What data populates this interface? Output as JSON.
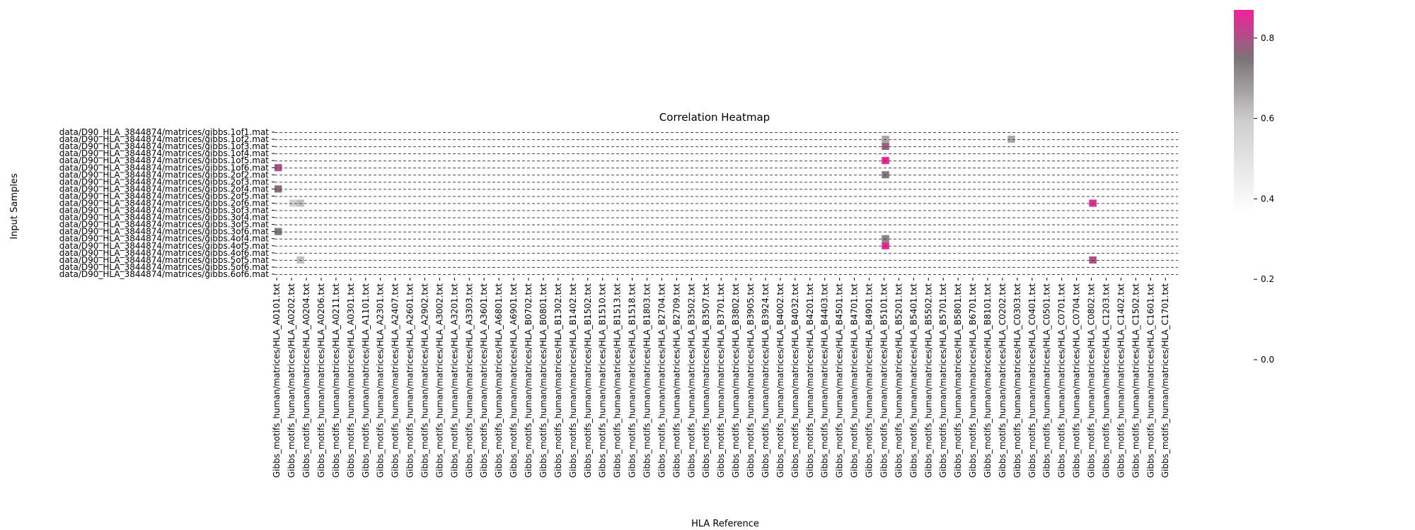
{
  "chart_data": {
    "type": "heatmap",
    "title": "Correlation Heatmap",
    "xlabel": "HLA Reference",
    "ylabel": "Input Samples",
    "rows": [
      "data/D90_HLA_3844874/matrices/gibbs.1of1.mat",
      "data/D90_HLA_3844874/matrices/gibbs.1of2.mat",
      "data/D90_HLA_3844874/matrices/gibbs.1of3.mat",
      "data/D90_HLA_3844874/matrices/gibbs.1of4.mat",
      "data/D90_HLA_3844874/matrices/gibbs.1of5.mat",
      "data/D90_HLA_3844874/matrices/gibbs.1of6.mat",
      "data/D90_HLA_3844874/matrices/gibbs.2of2.mat",
      "data/D90_HLA_3844874/matrices/gibbs.2of3.mat",
      "data/D90_HLA_3844874/matrices/gibbs.2of4.mat",
      "data/D90_HLA_3844874/matrices/gibbs.2of5.mat",
      "data/D90_HLA_3844874/matrices/gibbs.2of6.mat",
      "data/D90_HLA_3844874/matrices/gibbs.3of3.mat",
      "data/D90_HLA_3844874/matrices/gibbs.3of4.mat",
      "data/D90_HLA_3844874/matrices/gibbs.3of5.mat",
      "data/D90_HLA_3844874/matrices/gibbs.3of6.mat",
      "data/D90_HLA_3844874/matrices/gibbs.4of4.mat",
      "data/D90_HLA_3844874/matrices/gibbs.4of5.mat",
      "data/D90_HLA_3844874/matrices/gibbs.4of6.mat",
      "data/D90_HLA_3844874/matrices/gibbs.5of5.mat",
      "data/D90_HLA_3844874/matrices/gibbs.5of6.mat",
      "data/D90_HLA_3844874/matrices/gibbs.6of6.mat"
    ],
    "columns": [
      "Gibbs_motifs_human/matrices/HLA_A0101.txt",
      "Gibbs_motifs_human/matrices/HLA_A0202.txt",
      "Gibbs_motifs_human/matrices/HLA_A0204.txt",
      "Gibbs_motifs_human/matrices/HLA_A0206.txt",
      "Gibbs_motifs_human/matrices/HLA_A0211.txt",
      "Gibbs_motifs_human/matrices/HLA_A0301.txt",
      "Gibbs_motifs_human/matrices/HLA_A1101.txt",
      "Gibbs_motifs_human/matrices/HLA_A2301.txt",
      "Gibbs_motifs_human/matrices/HLA_A2407.txt",
      "Gibbs_motifs_human/matrices/HLA_A2601.txt",
      "Gibbs_motifs_human/matrices/HLA_A2902.txt",
      "Gibbs_motifs_human/matrices/HLA_A3002.txt",
      "Gibbs_motifs_human/matrices/HLA_A3201.txt",
      "Gibbs_motifs_human/matrices/HLA_A3303.txt",
      "Gibbs_motifs_human/matrices/HLA_A3601.txt",
      "Gibbs_motifs_human/matrices/HLA_A6801.txt",
      "Gibbs_motifs_human/matrices/HLA_A6901.txt",
      "Gibbs_motifs_human/matrices/HLA_B0702.txt",
      "Gibbs_motifs_human/matrices/HLA_B0801.txt",
      "Gibbs_motifs_human/matrices/HLA_B1302.txt",
      "Gibbs_motifs_human/matrices/HLA_B1402.txt",
      "Gibbs_motifs_human/matrices/HLA_B1502.txt",
      "Gibbs_motifs_human/matrices/HLA_B1510.txt",
      "Gibbs_motifs_human/matrices/HLA_B1513.txt",
      "Gibbs_motifs_human/matrices/HLA_B1518.txt",
      "Gibbs_motifs_human/matrices/HLA_B1803.txt",
      "Gibbs_motifs_human/matrices/HLA_B2704.txt",
      "Gibbs_motifs_human/matrices/HLA_B2709.txt",
      "Gibbs_motifs_human/matrices/HLA_B3502.txt",
      "Gibbs_motifs_human/matrices/HLA_B3507.txt",
      "Gibbs_motifs_human/matrices/HLA_B3701.txt",
      "Gibbs_motifs_human/matrices/HLA_B3802.txt",
      "Gibbs_motifs_human/matrices/HLA_B3905.txt",
      "Gibbs_motifs_human/matrices/HLA_B3924.txt",
      "Gibbs_motifs_human/matrices/HLA_B4002.txt",
      "Gibbs_motifs_human/matrices/HLA_B4032.txt",
      "Gibbs_motifs_human/matrices/HLA_B4201.txt",
      "Gibbs_motifs_human/matrices/HLA_B4403.txt",
      "Gibbs_motifs_human/matrices/HLA_B4501.txt",
      "Gibbs_motifs_human/matrices/HLA_B4701.txt",
      "Gibbs_motifs_human/matrices/HLA_B4901.txt",
      "Gibbs_motifs_human/matrices/HLA_B5101.txt",
      "Gibbs_motifs_human/matrices/HLA_B5201.txt",
      "Gibbs_motifs_human/matrices/HLA_B5401.txt",
      "Gibbs_motifs_human/matrices/HLA_B5502.txt",
      "Gibbs_motifs_human/matrices/HLA_B5701.txt",
      "Gibbs_motifs_human/matrices/HLA_B5801.txt",
      "Gibbs_motifs_human/matrices/HLA_B6701.txt",
      "Gibbs_motifs_human/matrices/HLA_B8101.txt",
      "Gibbs_motifs_human/matrices/HLA_C0202.txt",
      "Gibbs_motifs_human/matrices/HLA_C0303.txt",
      "Gibbs_motifs_human/matrices/HLA_C0401.txt",
      "Gibbs_motifs_human/matrices/HLA_C0501.txt",
      "Gibbs_motifs_human/matrices/HLA_C0701.txt",
      "Gibbs_motifs_human/matrices/HLA_C0704.txt",
      "Gibbs_motifs_human/matrices/HLA_C0802.txt",
      "Gibbs_motifs_human/matrices/HLA_C1203.txt",
      "Gibbs_motifs_human/matrices/HLA_C1402.txt",
      "Gibbs_motifs_human/matrices/HLA_C1502.txt",
      "Gibbs_motifs_human/matrices/HLA_C1601.txt",
      "Gibbs_motifs_human/matrices/HLA_C1701.txt"
    ],
    "notable_cells": [
      {
        "row": 4,
        "col": 82,
        "value": 0.87
      },
      {
        "row": 5,
        "col": 0,
        "value": 0.8
      },
      {
        "row": 2,
        "col": 82,
        "value": 0.78
      },
      {
        "row": 6,
        "col": 82,
        "value": 0.74
      },
      {
        "row": 8,
        "col": 0,
        "value": 0.76
      },
      {
        "row": 10,
        "col": 110,
        "value": 0.85
      },
      {
        "row": 14,
        "col": 0,
        "value": 0.74
      },
      {
        "row": 16,
        "col": 82,
        "value": 0.86
      },
      {
        "row": 15,
        "col": 82,
        "value": 0.72
      },
      {
        "row": 18,
        "col": 110,
        "value": 0.8
      },
      {
        "row": 1,
        "col": 82,
        "value": 0.66
      },
      {
        "row": 1,
        "col": 99,
        "value": 0.66
      },
      {
        "row": 18,
        "col": 3,
        "value": 0.62
      },
      {
        "row": 10,
        "col": 2,
        "value": 0.58
      },
      {
        "row": 10,
        "col": 3,
        "value": 0.62
      }
    ],
    "colorbar": {
      "min": 0.0,
      "max": 0.87,
      "ticks": [
        0.0,
        0.2,
        0.4,
        0.6,
        0.8
      ],
      "colors": [
        "#ffffff",
        "#7c7477",
        "#f0209a"
      ]
    },
    "row_separators": "dashed",
    "grid": false
  }
}
